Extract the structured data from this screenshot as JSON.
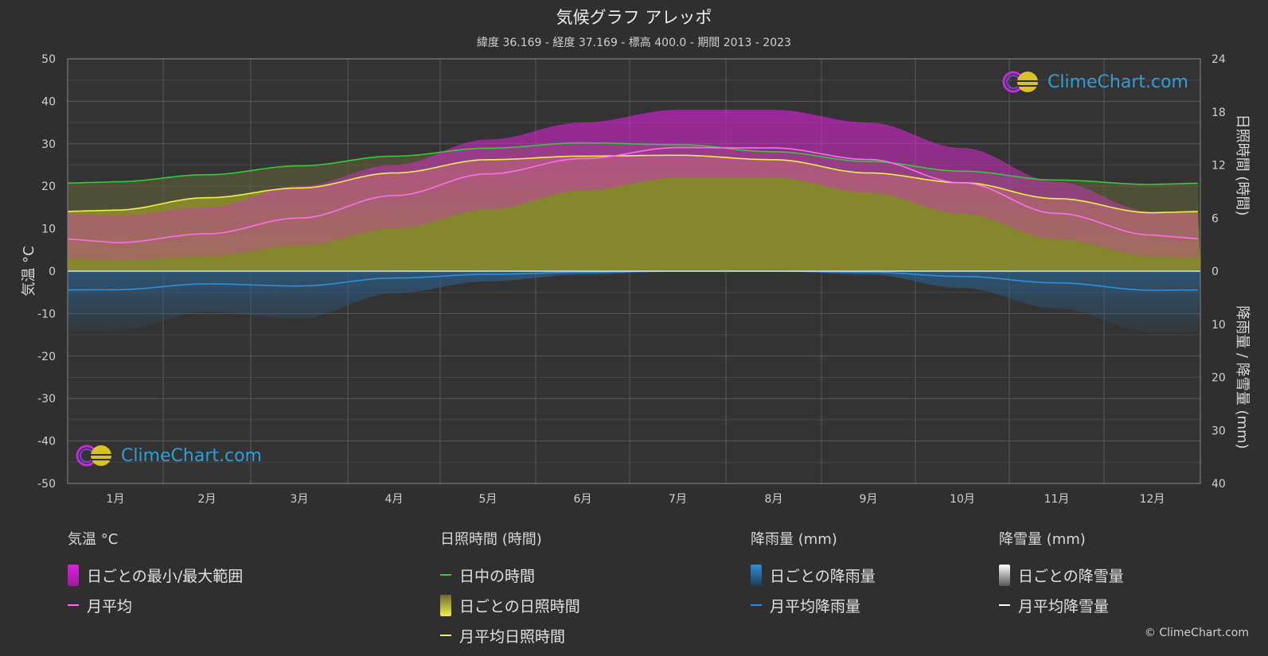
{
  "title": "気候グラフ アレッポ",
  "subtitle": "緯度 36.169 - 経度 37.169 - 標高 400.0 - 期間 2013 - 2023",
  "logo_text": "ClimeChart.com",
  "copyright": "© ClimeChart.com",
  "colors": {
    "background": "#2f2f2f",
    "temp_range": "#d81fd8",
    "temp_mean": "#ff6ee8",
    "daylight": "#36c93a",
    "sunshine_bar": "#8f8f2c",
    "sunshine_mean": "#f2f04a",
    "rain_bar": "#2c5e86",
    "rain_mean": "#2f8fdc",
    "snow_bar": "#8a8a8a",
    "snow_mean": "#ffffff"
  },
  "chart_data": {
    "type": "area",
    "categories": [
      "1月",
      "2月",
      "3月",
      "4月",
      "5月",
      "6月",
      "7月",
      "8月",
      "9月",
      "10月",
      "11月",
      "12月"
    ],
    "left_axis": {
      "label": "気温 °C",
      "ylim": [
        -50,
        50
      ],
      "ticks": [
        "50",
        "40",
        "30",
        "20",
        "10",
        "0",
        "-10",
        "-20",
        "-30",
        "-40",
        "-50"
      ]
    },
    "right_axis_top": {
      "label": "日照時間 (時間)",
      "ylim": [
        0,
        24
      ],
      "ticks": [
        "24",
        "18",
        "12",
        "6",
        "0"
      ]
    },
    "right_axis_bottom": {
      "label": "降雨量 / 降雪量 (mm)",
      "ylim": [
        0,
        40
      ],
      "ticks": [
        "10",
        "20",
        "30",
        "40"
      ]
    },
    "grid": true,
    "series": [
      {
        "name": "日ごとの最小/最大範囲",
        "min": [
          2.5,
          3.5,
          6,
          10,
          14.5,
          19,
          22,
          22,
          18.5,
          13.5,
          7.5,
          3.5
        ],
        "max": [
          13,
          15,
          20,
          25,
          31,
          35,
          38,
          38,
          35,
          29,
          21,
          14
        ]
      },
      {
        "name": "月平均",
        "values": [
          6.7,
          8.8,
          12.5,
          17.8,
          22.9,
          26.5,
          29.1,
          29.0,
          26.3,
          20.8,
          13.6,
          8.5
        ]
      },
      {
        "name": "日中の時間",
        "values": [
          10.1,
          10.9,
          11.9,
          13.0,
          13.9,
          14.5,
          14.3,
          13.5,
          12.4,
          11.3,
          10.3,
          9.8
        ]
      },
      {
        "name": "月平均日照時間",
        "values": [
          6.9,
          8.3,
          9.4,
          11.1,
          12.6,
          13.0,
          13.1,
          12.6,
          11.1,
          10.0,
          8.2,
          6.6
        ]
      },
      {
        "name": "月平均降雨量",
        "values": [
          3.5,
          2.4,
          2.8,
          1.3,
          0.6,
          0.2,
          0.0,
          0.0,
          0.2,
          1.0,
          2.2,
          3.6
        ]
      },
      {
        "name": "月平均降雪量",
        "values": [
          0,
          0,
          0,
          0,
          0,
          0,
          0,
          0,
          0,
          0,
          0,
          0
        ]
      }
    ]
  },
  "legend": {
    "temp": {
      "heading": "気温 °C",
      "range": "日ごとの最小/最大範囲",
      "mean": "月平均"
    },
    "sun": {
      "heading": "日照時間 (時間)",
      "daylight": "日中の時間",
      "daily": "日ごとの日照時間",
      "mean": "月平均日照時間"
    },
    "rain": {
      "heading": "降雨量 (mm)",
      "daily": "日ごとの降雨量",
      "mean": "月平均降雨量"
    },
    "snow": {
      "heading": "降雪量 (mm)",
      "daily": "日ごとの降雪量",
      "mean": "月平均降雪量"
    }
  }
}
